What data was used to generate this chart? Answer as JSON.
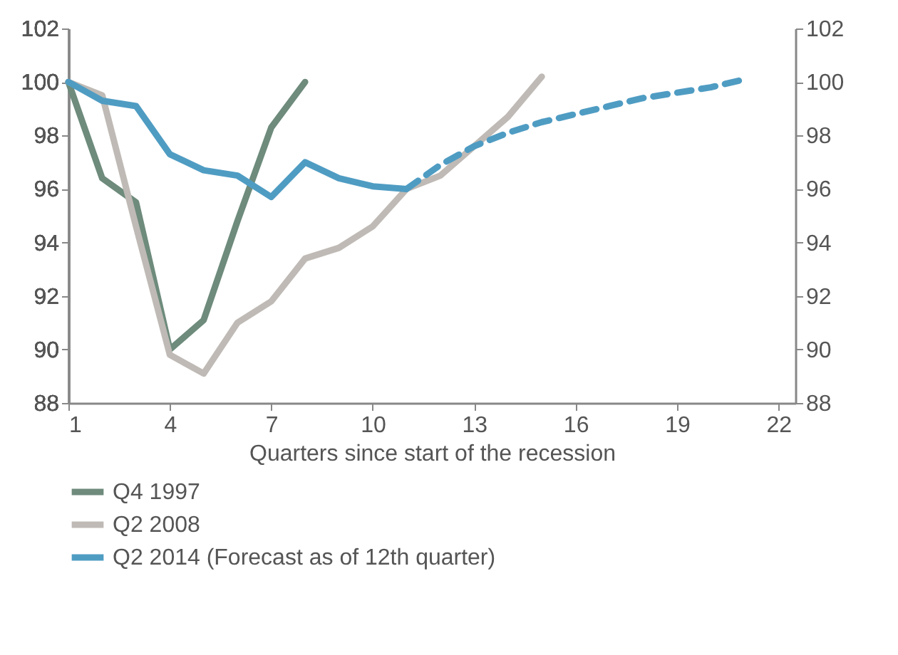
{
  "chart_data": {
    "type": "line",
    "xlabel": "Quarters since start of the recession",
    "xlim": [
      1,
      22.5
    ],
    "xticks": [
      1,
      4,
      7,
      10,
      13,
      16,
      19,
      22
    ],
    "ylim": [
      88,
      102
    ],
    "yticks": [
      88,
      90,
      92,
      94,
      96,
      98,
      100,
      102
    ],
    "y2lim": [
      88,
      102
    ],
    "y2ticks": [
      88,
      90,
      92,
      94,
      96,
      98,
      100,
      102
    ],
    "grid": false,
    "legend": "bottom",
    "marker": "none",
    "series": [
      {
        "name": "Q4 1997",
        "color": "#6e8b7c",
        "x": [
          1,
          2,
          3,
          4,
          5,
          6,
          7,
          8
        ],
        "values": [
          100,
          96.4,
          95.5,
          90,
          91.1,
          94.8,
          98.3,
          100
        ]
      },
      {
        "name": "Q2 2008",
        "color": "#bfbab5",
        "x": [
          1,
          2,
          3,
          4,
          5,
          6,
          7,
          8,
          9,
          10,
          11,
          12,
          13,
          14,
          15
        ],
        "values": [
          100,
          99.5,
          94.6,
          89.8,
          89.1,
          91,
          91.8,
          93.4,
          93.8,
          94.6,
          96,
          96.5,
          97.6,
          98.7,
          100.2
        ]
      },
      {
        "name": "Q2 2014 (Forecast as of 12th quarter)",
        "color": "#4f9cc3",
        "x": [
          1,
          2,
          3,
          4,
          5,
          6,
          7,
          8,
          9,
          10,
          11
        ],
        "values": [
          100,
          99.3,
          99.1,
          97.3,
          96.7,
          96.5,
          95.7,
          97,
          96.4,
          96.1,
          96
        ]
      },
      {
        "color": "#4f9cc3",
        "line_style": "dashed",
        "x": [
          11,
          12,
          13,
          14,
          15,
          16,
          17,
          18,
          19,
          20,
          21
        ],
        "values": [
          96,
          96.9,
          97.6,
          98.1,
          98.5,
          98.8,
          99.1,
          99.4,
          99.6,
          99.8,
          100.1
        ]
      }
    ]
  }
}
